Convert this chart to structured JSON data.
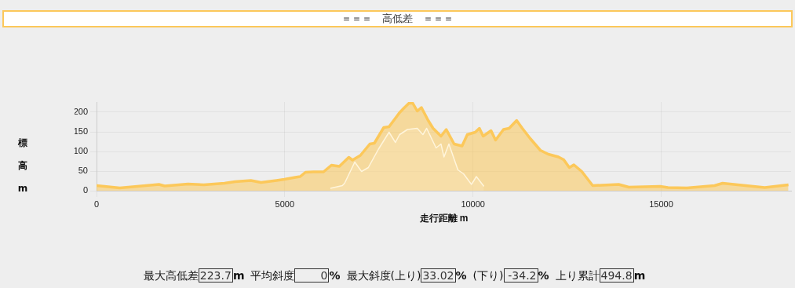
{
  "chart_data": {
    "type": "area",
    "title": "＝＝＝　高低差　＝＝＝",
    "xlabel": "走行距離 m",
    "ylabel": "標高m",
    "xlim": [
      0,
      18450
    ],
    "xticks": [
      0,
      5000,
      10000,
      15000
    ],
    "ylim": [
      0,
      226
    ],
    "yticks": [
      0,
      50,
      100,
      150,
      200
    ],
    "grid": true,
    "legend": false,
    "marker": "none",
    "series": [
      {
        "color": "#fcc85a",
        "x": [
          0,
          620,
          1660,
          1810,
          2430,
          2850,
          3400,
          3680,
          4100,
          4370,
          4780,
          4990,
          5280,
          5410,
          5550,
          5760,
          6030,
          6240,
          6450,
          6700,
          6800,
          7010,
          7260,
          7380,
          7630,
          7770,
          8050,
          8150,
          8300,
          8400,
          8520,
          8630,
          8810,
          8940,
          9150,
          9290,
          9500,
          9710,
          9850,
          10060,
          10170,
          10270,
          10480,
          10600,
          10810,
          10960,
          11160,
          11310,
          11520,
          11790,
          12000,
          12270,
          12410,
          12560,
          12680,
          12890,
          13180,
          13870,
          14140,
          14970,
          15180,
          15680,
          16420,
          16630,
          17750,
          18380
        ],
        "values": [
          13,
          7,
          16,
          12,
          17,
          15,
          19,
          23,
          26,
          21,
          26,
          29,
          34,
          36,
          47,
          48,
          48,
          65,
          62,
          85,
          78,
          90,
          119,
          121,
          161,
          163,
          199,
          209,
          223,
          223,
          203,
          212,
          179,
          159,
          139,
          156,
          119,
          114,
          143,
          149,
          159,
          139,
          153,
          129,
          156,
          159,
          179,
          159,
          133,
          103,
          93,
          86,
          79,
          59,
          66,
          49,
          13,
          16,
          9,
          11,
          8,
          7,
          13,
          19,
          8,
          15
        ]
      },
      {
        "color": "#fff5dc",
        "x": [
          6210,
          6530,
          6590,
          6860,
          7040,
          7220,
          7490,
          7770,
          7940,
          8050,
          8260,
          8520,
          8670,
          8770,
          9020,
          9150,
          9230,
          9360,
          9600,
          9750,
          9960,
          10090,
          10290
        ],
        "values": [
          6,
          13,
          19,
          73,
          49,
          59,
          106,
          149,
          123,
          143,
          156,
          159,
          143,
          159,
          109,
          119,
          86,
          119,
          53,
          43,
          16,
          36,
          11
        ]
      }
    ],
    "annotations": [
      "最大高低差",
      "223.7",
      "m",
      "平均斜度",
      "0",
      "%",
      "最大斜度(上り)",
      "33.02",
      "%",
      "(下り)",
      "-34.2",
      "%",
      "上り累計",
      "494.8",
      "m"
    ]
  }
}
